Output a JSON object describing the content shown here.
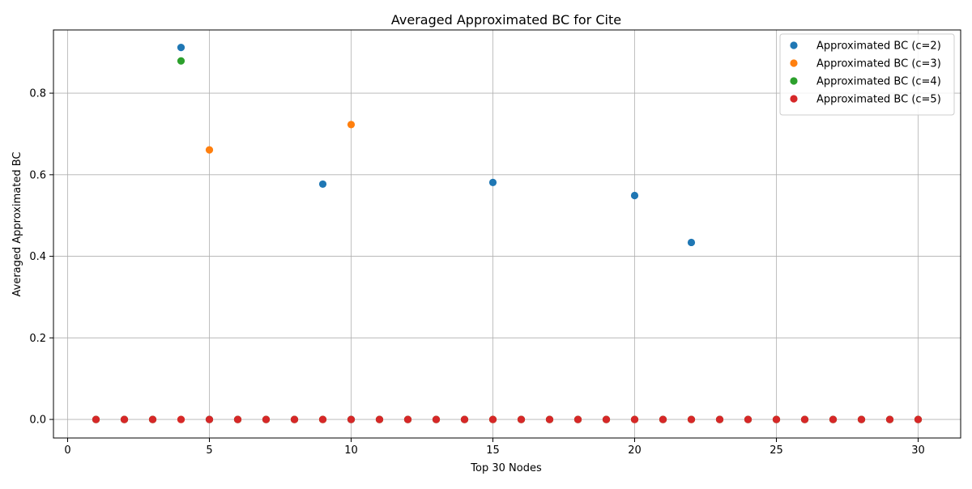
{
  "chart_data": {
    "type": "scatter",
    "title": "Averaged Approximated BC for Cite",
    "xlabel": "Top 30 Nodes",
    "ylabel": "Averaged Approximated BC",
    "xlim": [
      -0.5,
      31.5
    ],
    "ylim": [
      -0.0455,
      0.955
    ],
    "xticks": [
      0,
      5,
      10,
      15,
      20,
      25,
      30
    ],
    "yticks": [
      0.0,
      0.2,
      0.4,
      0.6,
      0.8
    ],
    "ytick_labels": [
      "0.0",
      "0.2",
      "0.4",
      "0.6",
      "0.8"
    ],
    "grid": true,
    "legend_position": "top-right",
    "series": [
      {
        "name": "Approximated BC (c=2)",
        "color": "#1f77b4",
        "points": [
          [
            1,
            0
          ],
          [
            2,
            0
          ],
          [
            3,
            0
          ],
          [
            4,
            0.912
          ],
          [
            5,
            0
          ],
          [
            6,
            0
          ],
          [
            7,
            0
          ],
          [
            8,
            0
          ],
          [
            9,
            0.577
          ],
          [
            10,
            0
          ],
          [
            11,
            0
          ],
          [
            12,
            0
          ],
          [
            13,
            0
          ],
          [
            14,
            0
          ],
          [
            15,
            0.581
          ],
          [
            16,
            0
          ],
          [
            17,
            0
          ],
          [
            18,
            0
          ],
          [
            19,
            0
          ],
          [
            20,
            0.549
          ],
          [
            21,
            0
          ],
          [
            22,
            0.434
          ],
          [
            23,
            0
          ],
          [
            24,
            0
          ],
          [
            25,
            0
          ],
          [
            26,
            0
          ],
          [
            27,
            0
          ],
          [
            28,
            0
          ],
          [
            29,
            0
          ],
          [
            30,
            0
          ]
        ]
      },
      {
        "name": "Approximated BC (c=3)",
        "color": "#ff7f0e",
        "points": [
          [
            1,
            0
          ],
          [
            2,
            0
          ],
          [
            3,
            0
          ],
          [
            4,
            0
          ],
          [
            5,
            0.661
          ],
          [
            6,
            0
          ],
          [
            7,
            0
          ],
          [
            8,
            0
          ],
          [
            9,
            0
          ],
          [
            10,
            0.723
          ],
          [
            11,
            0
          ],
          [
            12,
            0
          ],
          [
            13,
            0
          ],
          [
            14,
            0
          ],
          [
            15,
            0
          ],
          [
            16,
            0
          ],
          [
            17,
            0
          ],
          [
            18,
            0
          ],
          [
            19,
            0
          ],
          [
            20,
            0
          ],
          [
            21,
            0
          ],
          [
            22,
            0
          ],
          [
            23,
            0
          ],
          [
            24,
            0
          ],
          [
            25,
            0
          ],
          [
            26,
            0
          ],
          [
            27,
            0
          ],
          [
            28,
            0
          ],
          [
            29,
            0
          ],
          [
            30,
            0
          ]
        ]
      },
      {
        "name": "Approximated BC (c=4)",
        "color": "#2ca02c",
        "points": [
          [
            1,
            0
          ],
          [
            2,
            0
          ],
          [
            3,
            0
          ],
          [
            4,
            0.879
          ],
          [
            5,
            0
          ],
          [
            6,
            0
          ],
          [
            7,
            0
          ],
          [
            8,
            0
          ],
          [
            9,
            0
          ],
          [
            10,
            0
          ],
          [
            11,
            0
          ],
          [
            12,
            0
          ],
          [
            13,
            0
          ],
          [
            14,
            0
          ],
          [
            15,
            0
          ],
          [
            16,
            0
          ],
          [
            17,
            0
          ],
          [
            18,
            0
          ],
          [
            19,
            0
          ],
          [
            20,
            0
          ],
          [
            21,
            0
          ],
          [
            22,
            0
          ],
          [
            23,
            0
          ],
          [
            24,
            0
          ],
          [
            25,
            0
          ],
          [
            26,
            0
          ],
          [
            27,
            0
          ],
          [
            28,
            0
          ],
          [
            29,
            0
          ],
          [
            30,
            0
          ]
        ]
      },
      {
        "name": "Approximated BC (c=5)",
        "color": "#d62728",
        "points": [
          [
            1,
            0
          ],
          [
            2,
            0
          ],
          [
            3,
            0
          ],
          [
            4,
            0
          ],
          [
            5,
            0
          ],
          [
            6,
            0
          ],
          [
            7,
            0
          ],
          [
            8,
            0
          ],
          [
            9,
            0
          ],
          [
            10,
            0
          ],
          [
            11,
            0
          ],
          [
            12,
            0
          ],
          [
            13,
            0
          ],
          [
            14,
            0
          ],
          [
            15,
            0
          ],
          [
            16,
            0
          ],
          [
            17,
            0
          ],
          [
            18,
            0
          ],
          [
            19,
            0
          ],
          [
            20,
            0
          ],
          [
            21,
            0
          ],
          [
            22,
            0
          ],
          [
            23,
            0
          ],
          [
            24,
            0
          ],
          [
            25,
            0
          ],
          [
            26,
            0
          ],
          [
            27,
            0
          ],
          [
            28,
            0
          ],
          [
            29,
            0
          ],
          [
            30,
            0
          ]
        ]
      }
    ]
  }
}
